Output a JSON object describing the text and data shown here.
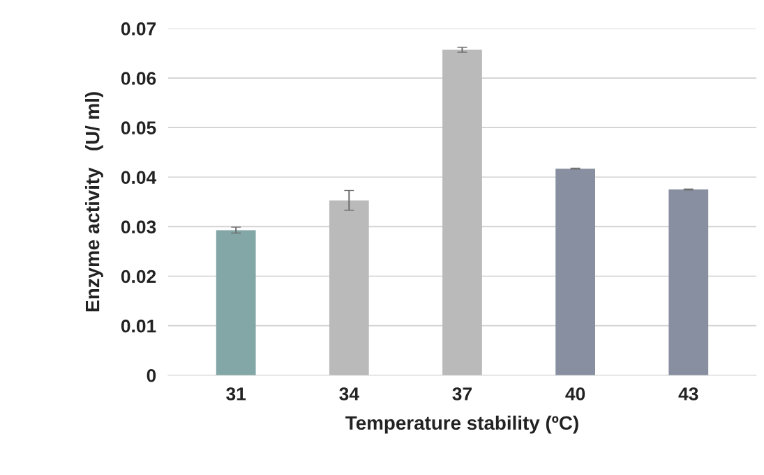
{
  "chart_data": {
    "type": "bar",
    "xlabel": "Temperature stability (ºC)",
    "ylabel": "Enzyme activity   (U/ ml)",
    "categories": [
      "31",
      "34",
      "37",
      "40",
      "43"
    ],
    "values": [
      0.0293,
      0.0353,
      0.0657,
      0.0417,
      0.0375
    ],
    "errors": [
      0.0006,
      0.002,
      0.0005,
      0.0001,
      0.0001
    ],
    "colors": [
      "#83a6a6",
      "#bababa",
      "#bababa",
      "#878fa0",
      "#878fa0"
    ],
    "ylim": [
      0,
      0.07
    ],
    "yticks": [
      {
        "value": 0,
        "label": "0"
      },
      0.01,
      0.02,
      0.03,
      0.04,
      0.05,
      0.06,
      0.07
    ],
    "grid": "y",
    "legend": false
  }
}
